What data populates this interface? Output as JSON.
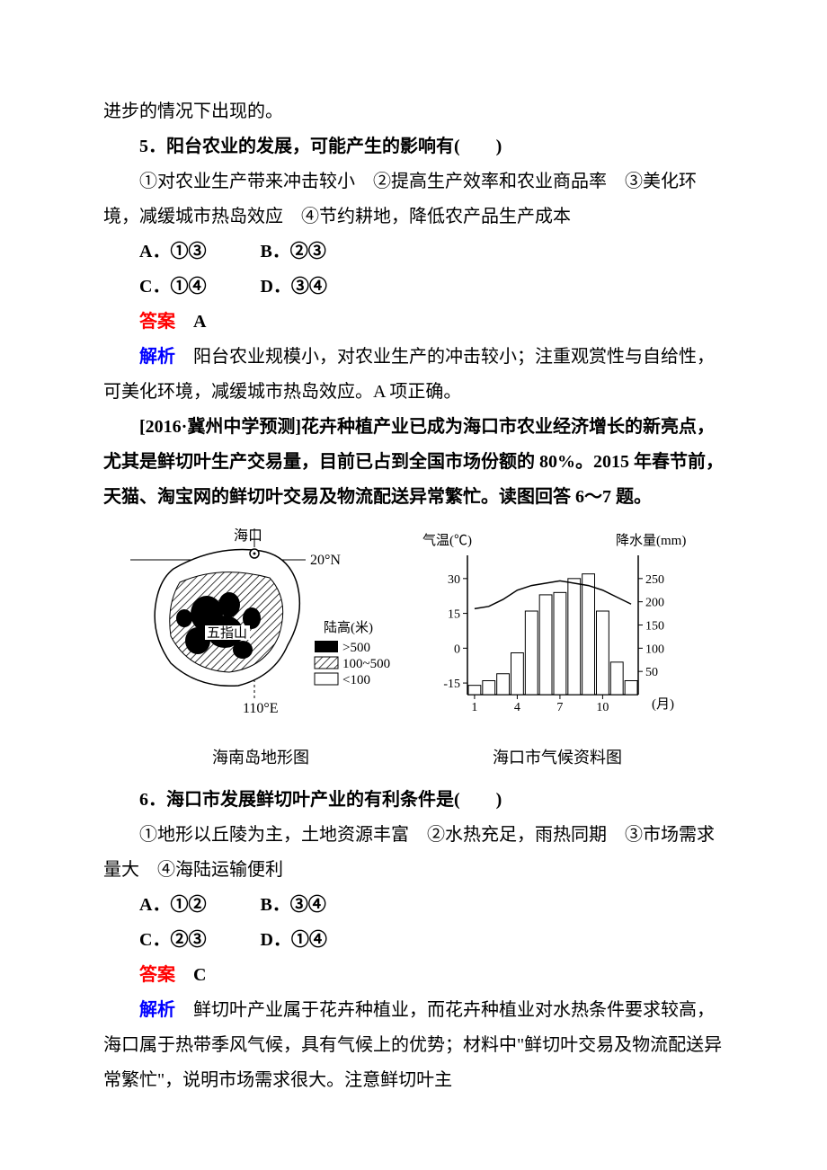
{
  "intro_fragment": "进步的情况下出现的。",
  "q5": {
    "stem": "5．阳台农业的发展，可能产生的影响有(　　)",
    "choices_line": "①对农业生产带来冲击较小　②提高生产效率和农业商品率　③美化环境，减缓城市热岛效应　④节约耕地，降低农产品生产成本",
    "optA": "A．①③",
    "optB": "B．②③",
    "optC": "C．①④",
    "optD": "D．③④",
    "answer_label": "答案",
    "answer_value": "　A",
    "analysis_label": "解析",
    "analysis_text": "　阳台农业规模小，对农业生产的冲击较小；注重观赏性与自给性，可美化环境，减缓城市热岛效应。A 项正确。"
  },
  "passage": {
    "source": "[2016·冀州中学预测]",
    "text": "花卉种植产业已成为海口市农业经济增长的新亮点，尤其是鲜切叶生产交易量，目前已占到全国市场份额的 80%。2015 年春节前，天猫、淘宝网的鲜切叶交易及物流配送异常繁忙。读图回答 6～7 题。"
  },
  "map": {
    "caption": "海南岛地形图",
    "haikou_label": "海口",
    "wuzhishan_label": "五指山",
    "lat_label": "20°N",
    "lon_label": "110°E",
    "legend_title": "陆高(米)",
    "legend1": ">500",
    "legend2": "100~500",
    "legend3": "<100",
    "colors": {
      "black": "#000000",
      "white": "#ffffff",
      "hatch": "#000000"
    }
  },
  "climate": {
    "caption": "海口市气候资料图",
    "temp_label": "气温(℃)",
    "precip_label": "降水量(mm)",
    "temp_ticks": [
      "30",
      "15",
      "0",
      "-15"
    ],
    "temp_tick_values": [
      30,
      15,
      0,
      -15
    ],
    "precip_ticks": [
      "250",
      "200",
      "150",
      "100",
      "50"
    ],
    "precip_tick_values": [
      250,
      200,
      150,
      100,
      50
    ],
    "x_ticks": [
      "1",
      "4",
      "7",
      "10"
    ],
    "x_label": "(月)",
    "precip_values": [
      20,
      30,
      45,
      90,
      180,
      215,
      220,
      250,
      260,
      180,
      70,
      30
    ],
    "temp_values": [
      17,
      18,
      21,
      25,
      27,
      28,
      29,
      28,
      27,
      25,
      22,
      19
    ],
    "bar_color": "#ffffff",
    "bar_stroke": "#000000",
    "line_color": "#000000",
    "background": "#ffffff",
    "axis_color": "#000000",
    "font_size": 14,
    "ylim_temp": [
      -20,
      40
    ],
    "ylim_precip": [
      0,
      300
    ]
  },
  "q6": {
    "stem": "6．海口市发展鲜切叶产业的有利条件是(　　)",
    "choices_line": "①地形以丘陵为主，土地资源丰富　②水热充足，雨热同期　③市场需求量大　④海陆运输便利",
    "optA": "A．①②",
    "optB": "B．③④",
    "optC": "C．②③",
    "optD": "D．①④",
    "answer_label": "答案",
    "answer_value": "　C",
    "analysis_label": "解析",
    "analysis_text": "　鲜切叶产业属于花卉种植业，而花卉种植业对水热条件要求较高，海口属于热带季风气候，具有气候上的优势；材料中\"鲜切叶交易及物流配送异常繁忙\"，说明市场需求很大。注意鲜切叶主"
  }
}
